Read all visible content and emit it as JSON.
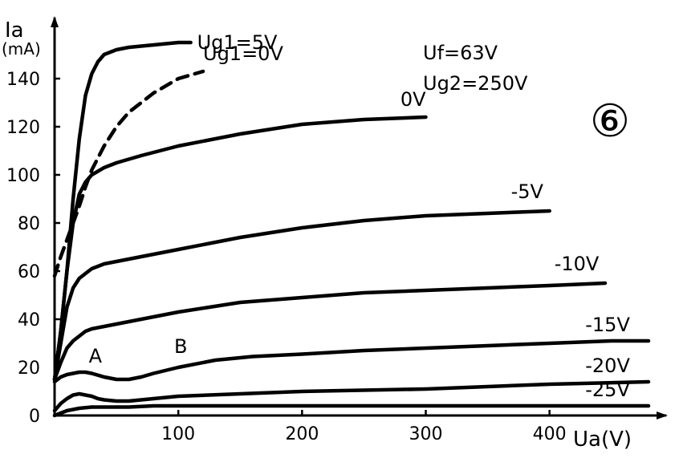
{
  "chart_data": {
    "type": "line",
    "title": "",
    "badge": "⑥",
    "ylabel": "Ia",
    "yunit": "(mA)",
    "xlabel": "Ua(V)",
    "xlim": [
      0,
      480
    ],
    "ylim": [
      0,
      160
    ],
    "xticks": [
      100,
      200,
      300,
      400
    ],
    "yticks": [
      0,
      20,
      40,
      60,
      80,
      100,
      120,
      140
    ],
    "conditions": [
      "Uf=63V",
      "Ug2=250V"
    ],
    "grid": false,
    "series": [
      {
        "name": "Ug1=5V",
        "style": "solid",
        "x": [
          0,
          5,
          10,
          15,
          20,
          25,
          30,
          35,
          40,
          50,
          60,
          80,
          100,
          110
        ],
        "y": [
          15,
          35,
          60,
          90,
          115,
          133,
          142,
          147,
          150,
          152,
          153,
          154,
          155,
          155
        ]
      },
      {
        "name": "Ug1=0V",
        "style": "dashed",
        "x": [
          0,
          5,
          10,
          15,
          20,
          25,
          30,
          40,
          50,
          60,
          80,
          100,
          120
        ],
        "y": [
          58,
          66,
          73,
          80,
          87,
          95,
          102,
          112,
          120,
          126,
          134,
          140,
          143
        ]
      },
      {
        "name": "0V",
        "style": "solid",
        "x": [
          0,
          5,
          10,
          15,
          20,
          25,
          30,
          40,
          50,
          70,
          100,
          150,
          200,
          250,
          300
        ],
        "y": [
          15,
          35,
          60,
          80,
          92,
          97,
          100,
          103,
          105,
          108,
          112,
          117,
          121,
          123,
          124
        ]
      },
      {
        "name": "-5V",
        "style": "solid",
        "x": [
          0,
          5,
          10,
          15,
          20,
          25,
          30,
          40,
          50,
          70,
          100,
          150,
          200,
          250,
          300,
          350,
          400
        ],
        "y": [
          15,
          30,
          45,
          53,
          57,
          59,
          61,
          63,
          64,
          66,
          69,
          74,
          78,
          81,
          83,
          84,
          85
        ]
      },
      {
        "name": "-10V",
        "style": "solid",
        "x": [
          0,
          5,
          10,
          15,
          20,
          25,
          30,
          40,
          50,
          70,
          100,
          150,
          200,
          250,
          300,
          350,
          400,
          445
        ],
        "y": [
          15,
          22,
          28,
          31,
          33,
          35,
          36,
          37,
          38,
          40,
          43,
          47,
          49,
          51,
          52,
          53,
          54,
          55
        ]
      },
      {
        "name": "-15V",
        "style": "solid",
        "x": [
          0,
          5,
          10,
          15,
          20,
          25,
          30,
          40,
          50,
          60,
          70,
          80,
          100,
          130,
          160,
          200,
          250,
          300,
          350,
          400,
          450,
          480
        ],
        "y": [
          14,
          16,
          17,
          17.5,
          18,
          18,
          17.5,
          16,
          15,
          15,
          16,
          17.5,
          20,
          23,
          24.5,
          25.5,
          27,
          28,
          29,
          30,
          31,
          31
        ]
      },
      {
        "name": "-20V",
        "style": "solid",
        "x": [
          0,
          5,
          10,
          15,
          20,
          25,
          30,
          35,
          40,
          50,
          60,
          70,
          80,
          100,
          150,
          200,
          300,
          400,
          480
        ],
        "y": [
          2,
          5,
          7,
          8.5,
          9,
          8.5,
          8,
          7,
          6.5,
          6,
          6,
          6.5,
          7,
          8,
          9,
          10,
          11,
          13,
          14
        ]
      },
      {
        "name": "-25V",
        "style": "solid",
        "x": [
          0,
          10,
          20,
          30,
          40,
          50,
          60,
          80,
          100,
          150,
          200,
          300,
          400,
          480
        ],
        "y": [
          0,
          2,
          3,
          3.5,
          3.5,
          3.5,
          3.5,
          4,
          4,
          4,
          4,
          4,
          4,
          4
        ]
      }
    ],
    "annotations": [
      {
        "text": "A",
        "x": 33,
        "y": 22
      },
      {
        "text": "B",
        "x": 102,
        "y": 26
      }
    ]
  }
}
